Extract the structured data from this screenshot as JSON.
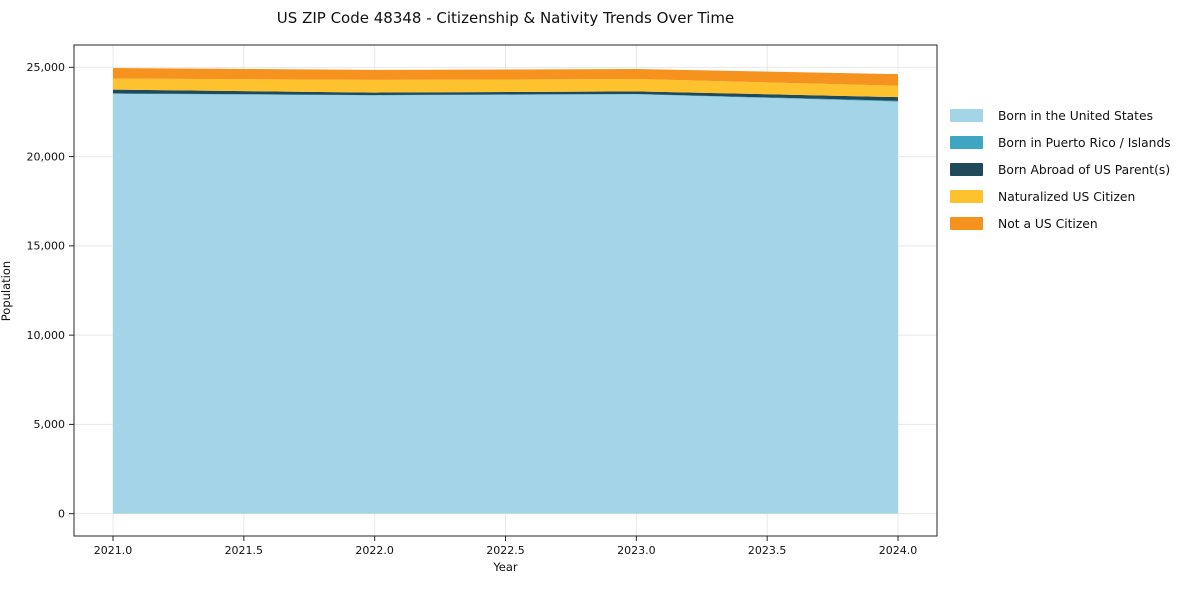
{
  "chart_data": {
    "type": "area",
    "stacked": true,
    "title": "US ZIP Code 48348 - Citizenship & Nativity Trends Over Time",
    "xlabel": "Year",
    "ylabel": "Population",
    "x": [
      2021,
      2022,
      2023,
      2024
    ],
    "series": [
      {
        "name": "Born in the United States",
        "color": "#a4d4e8",
        "values": [
          23520,
          23430,
          23490,
          23080
        ]
      },
      {
        "name": "Born in Puerto Rico / Islands",
        "color": "#3ea6c2",
        "values": [
          20,
          15,
          15,
          40
        ]
      },
      {
        "name": "Born Abroad of US Parent(s)",
        "color": "#1f4a5c",
        "values": [
          210,
          140,
          150,
          210
        ]
      },
      {
        "name": "Naturalized US Citizen",
        "color": "#fdc22d",
        "values": [
          620,
          710,
          690,
          640
        ]
      },
      {
        "name": "Not a US Citizen",
        "color": "#f6931e",
        "values": [
          590,
          560,
          560,
          650
        ]
      }
    ],
    "totals": [
      24960,
      24855,
      24905,
      24620
    ],
    "xticks": [
      2021.0,
      2021.5,
      2022.0,
      2022.5,
      2023.0,
      2023.5,
      2024.0
    ],
    "xtick_labels": [
      "2021.0",
      "2021.5",
      "2022.0",
      "2022.5",
      "2023.0",
      "2023.5",
      "2024.0"
    ],
    "yticks": [
      0,
      5000,
      10000,
      15000,
      20000,
      25000
    ],
    "ytick_labels": [
      "0",
      "5,000",
      "10,000",
      "15,000",
      "20,000",
      "25,000"
    ],
    "xlim": [
      2020.851,
      2024.149
    ],
    "ylim": [
      -1250,
      26250
    ],
    "grid": true,
    "gridline_color": "#e8e8e8",
    "spine_color": "#262626",
    "legend_position": "right"
  }
}
